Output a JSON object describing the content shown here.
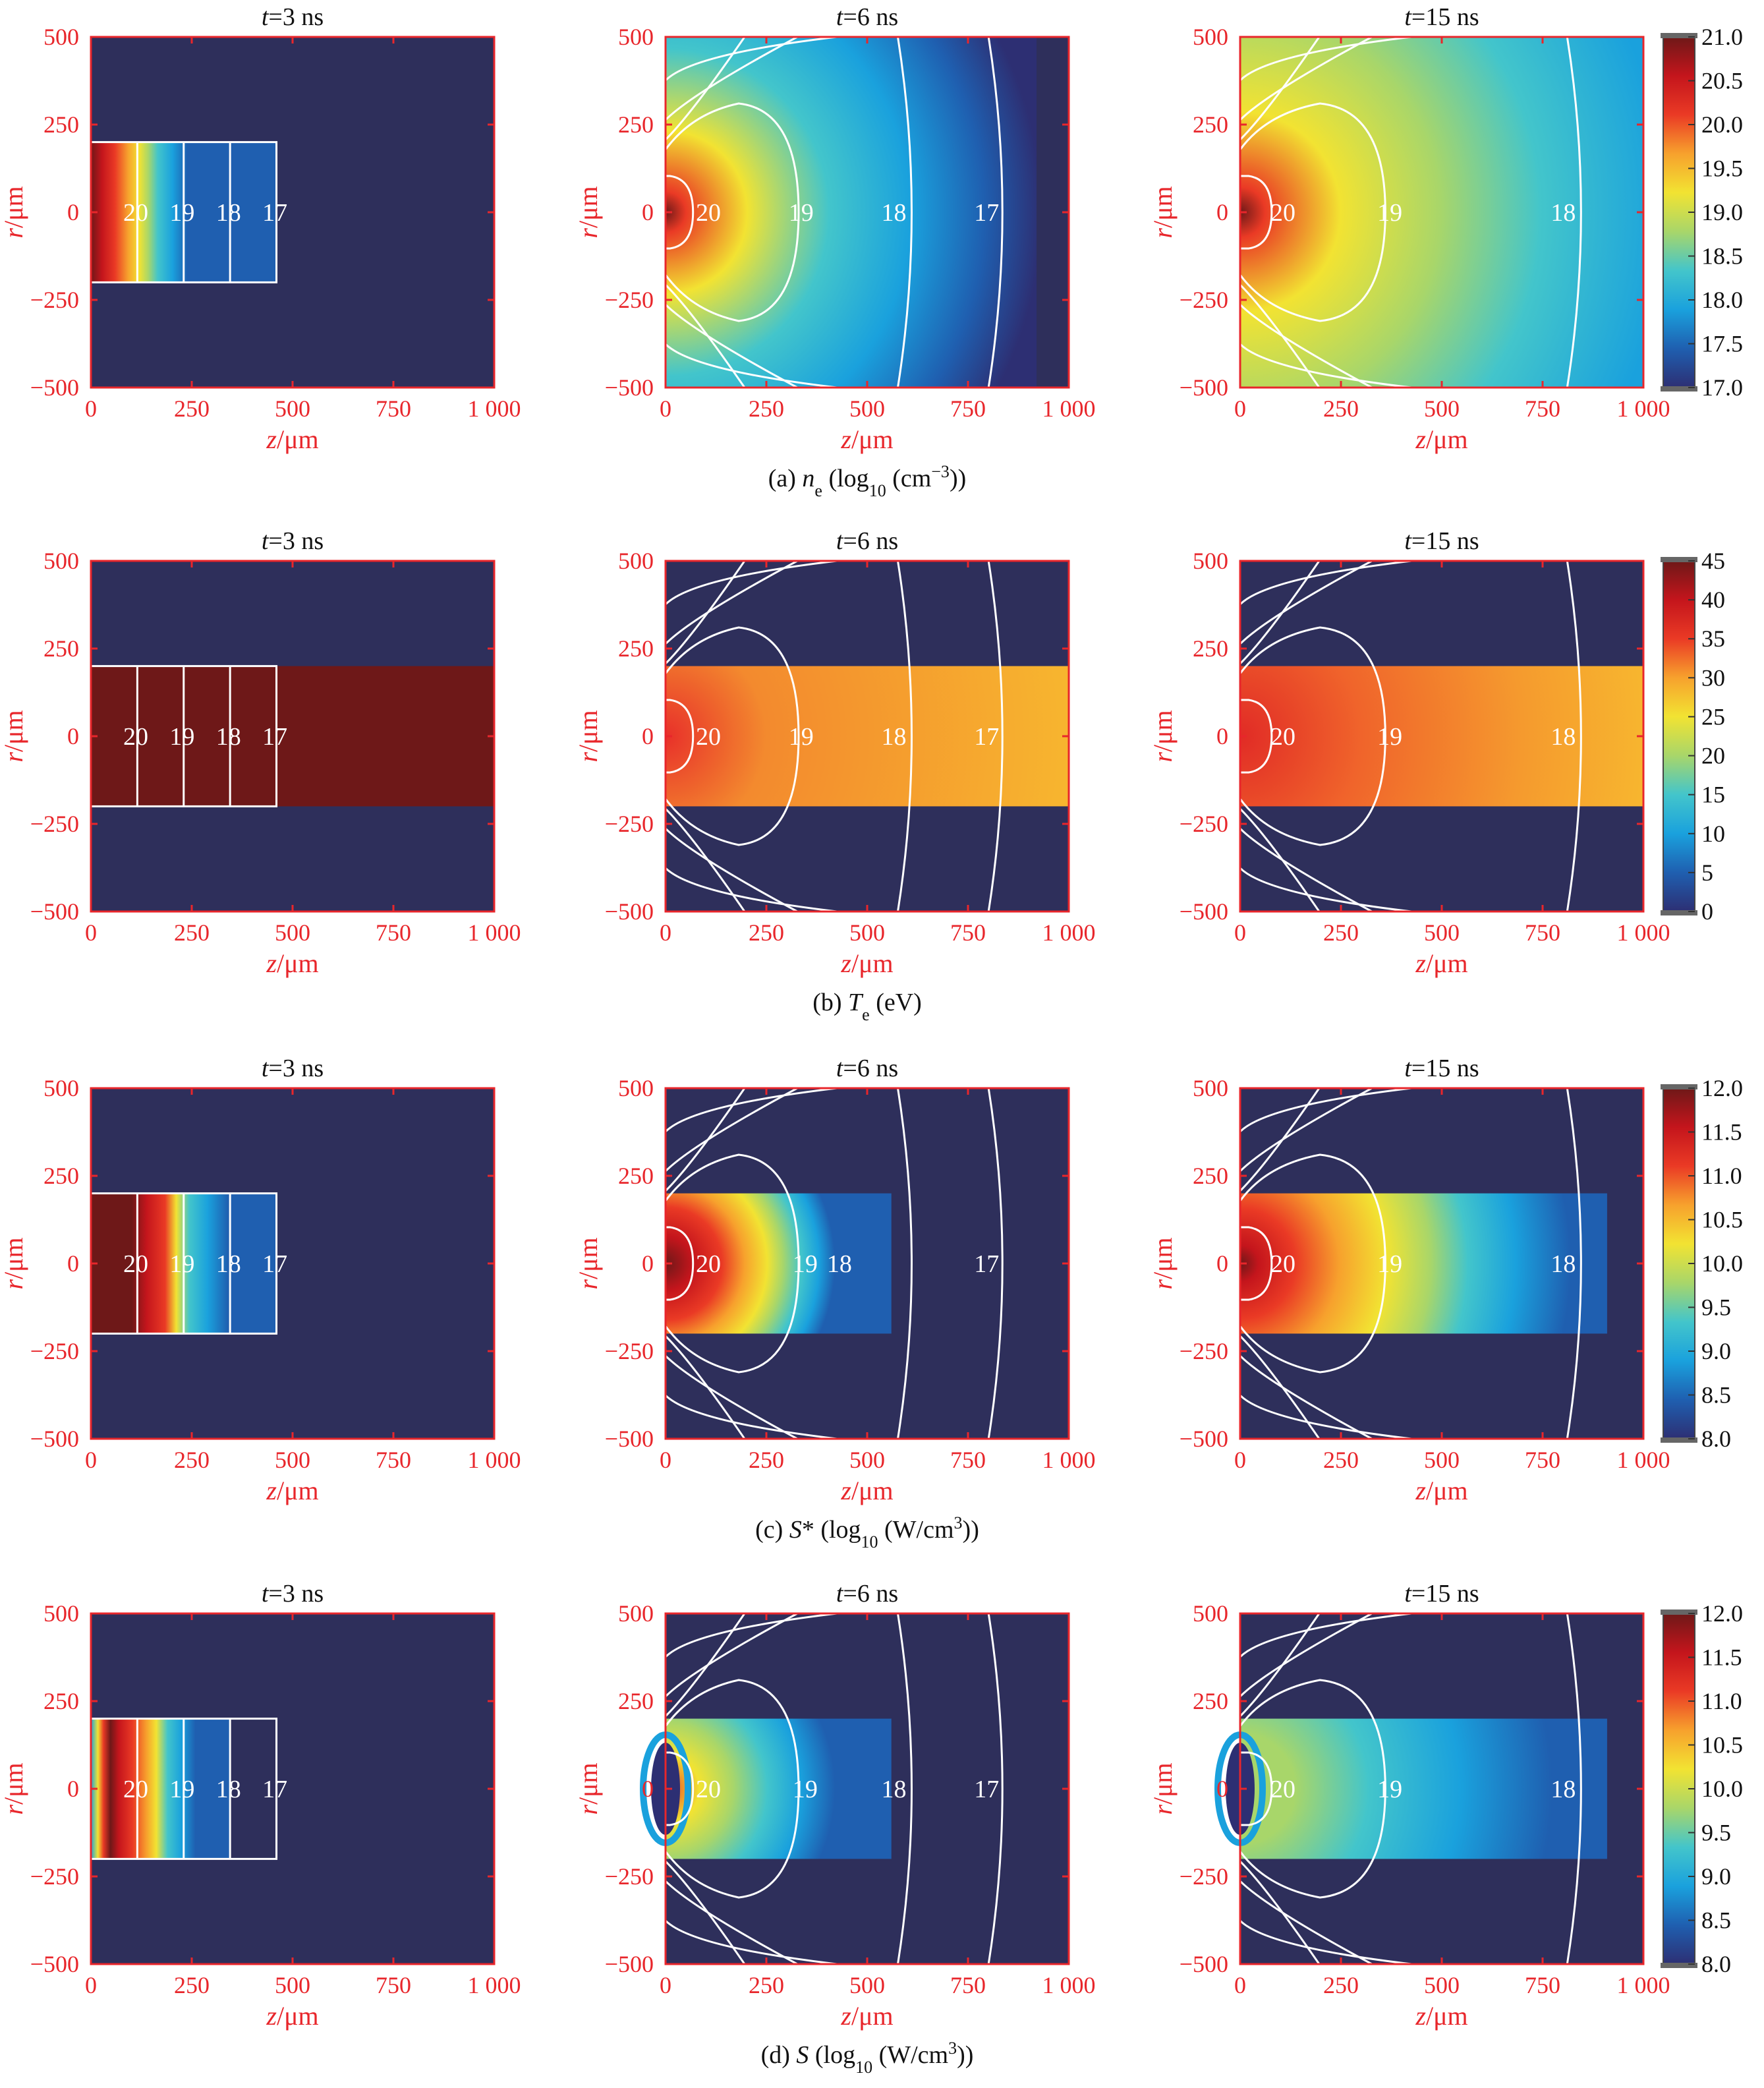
{
  "chart_data": {
    "type": "heatmap",
    "x_axis": {
      "label_var": "z",
      "label_unit": "/μm",
      "ticks": [
        "0",
        "250",
        "500",
        "750",
        "1 000"
      ],
      "range": [
        0,
        1000
      ]
    },
    "y_axis": {
      "label_var": "r",
      "label_unit": "/μm",
      "ticks": [
        "500",
        "250",
        "0",
        "−250",
        "−500"
      ],
      "range": [
        -500,
        500
      ]
    },
    "times": [
      {
        "prefix": "t",
        "label": "=3 ns",
        "ns": 3
      },
      {
        "prefix": "t",
        "label": "=6 ns",
        "ns": 6
      },
      {
        "prefix": "t",
        "label": "=15 ns",
        "ns": 15
      }
    ],
    "colors": {
      "background": "#2e2f5b",
      "frame": "#e8262b",
      "contour": "#ffffff"
    },
    "colormap": [
      "#2d2f73",
      "#1f5fb0",
      "#1aa1dd",
      "#43c5cb",
      "#a8d66a",
      "#f2e332",
      "#f7a12d",
      "#ea3a25",
      "#c4151c",
      "#6e1818"
    ],
    "contour_labels": [
      "20",
      "19",
      "18",
      "17"
    ],
    "contour_positions": {
      "t3": [
        115,
        230,
        345,
        460
      ],
      "t6": [
        160,
        390,
        625,
        850
      ],
      "t15": [
        170,
        420,
        860
      ]
    },
    "rows": [
      {
        "id": "ne",
        "caption": {
          "prefix": "(a) ",
          "var": "n",
          "sub": "e",
          "rest": " (log",
          "sub2": "10",
          "rest2": " (cm",
          "sup": "−3",
          "rest3": "))"
        },
        "colorbar": {
          "min": 17.0,
          "max": 21.0,
          "ticks": [
            "21.0",
            "20.5",
            "20.0",
            "19.5",
            "19.0",
            "18.5",
            "18.0",
            "17.5",
            "17.0"
          ]
        },
        "panels": [
          {
            "band": true,
            "label_z": [
              170,
              285,
              400,
              515
            ],
            "labels": [
              "20",
              "19",
              "18",
              "17"
            ]
          },
          {
            "band": false,
            "label_z": [
              165,
              395,
              625,
              855
            ],
            "labels": [
              "20",
              "19",
              "18",
              "17"
            ]
          },
          {
            "band": false,
            "label_z": [
              165,
              430,
              860
            ],
            "labels": [
              "20",
              "19",
              "18"
            ]
          }
        ]
      },
      {
        "id": "te",
        "caption": {
          "prefix": "(b) ",
          "var": "T",
          "sub": "e",
          "rest": " (eV)",
          "sub2": "",
          "rest2": "",
          "sup": "",
          "rest3": ""
        },
        "colorbar": {
          "min": 0,
          "max": 45,
          "ticks": [
            "45",
            "40",
            "35",
            "30",
            "25",
            "20",
            "15",
            "10",
            "5",
            "0"
          ]
        },
        "panels": [
          {
            "band": true,
            "label_z": [
              170,
              285,
              400,
              515
            ],
            "labels": [
              "20",
              "19",
              "18",
              "17"
            ]
          },
          {
            "band": true,
            "label_z": [
              165,
              395,
              625,
              855
            ],
            "labels": [
              "20",
              "19",
              "18",
              "17"
            ]
          },
          {
            "band": true,
            "label_z": [
              165,
              430,
              860
            ],
            "labels": [
              "20",
              "19",
              "18"
            ]
          }
        ]
      },
      {
        "id": "sstar",
        "caption": {
          "prefix": "(c) ",
          "var": "S",
          "sub": "",
          "rest": "* (log",
          "sub2": "10",
          "rest2": " (W/cm",
          "sup": "3",
          "rest3": "))"
        },
        "colorbar": {
          "min": 8.0,
          "max": 12.0,
          "ticks": [
            "12.0",
            "11.5",
            "11.0",
            "10.5",
            "10.0",
            "9.5",
            "9.0",
            "8.5",
            "8.0"
          ]
        },
        "panels": [
          {
            "band": true,
            "label_z": [
              170,
              285,
              400,
              515
            ],
            "labels": [
              "20",
              "19",
              "18",
              "17"
            ]
          },
          {
            "band": true,
            "label_z": [
              165,
              405,
              490,
              855
            ],
            "labels": [
              "20",
              "19",
              "18",
              "17"
            ]
          },
          {
            "band": true,
            "label_z": [
              165,
              430,
              860
            ],
            "labels": [
              "20",
              "19",
              "18"
            ]
          }
        ]
      },
      {
        "id": "s",
        "caption": {
          "prefix": "(d) ",
          "var": "S",
          "sub": "",
          "rest": " (log",
          "sub2": "10",
          "rest2": " (W/cm",
          "sup": "3",
          "rest3": "))"
        },
        "colorbar": {
          "min": 8.0,
          "max": 12.0,
          "ticks": [
            "12.0",
            "11.5",
            "11.0",
            "10.5",
            "10.0",
            "9.5",
            "9.0",
            "8.5",
            "8.0"
          ]
        },
        "panels": [
          {
            "band": true,
            "label_z": [
              170,
              285,
              400,
              515
            ],
            "labels": [
              "20",
              "19",
              "18",
              "17"
            ]
          },
          {
            "band": true,
            "label_z": [
              165,
              405,
              625,
              855
            ],
            "labels": [
              "20",
              "19",
              "18",
              "17"
            ]
          },
          {
            "band": true,
            "label_z": [
              165,
              430,
              860
            ],
            "labels": [
              "20",
              "19",
              "18"
            ]
          }
        ]
      }
    ]
  }
}
